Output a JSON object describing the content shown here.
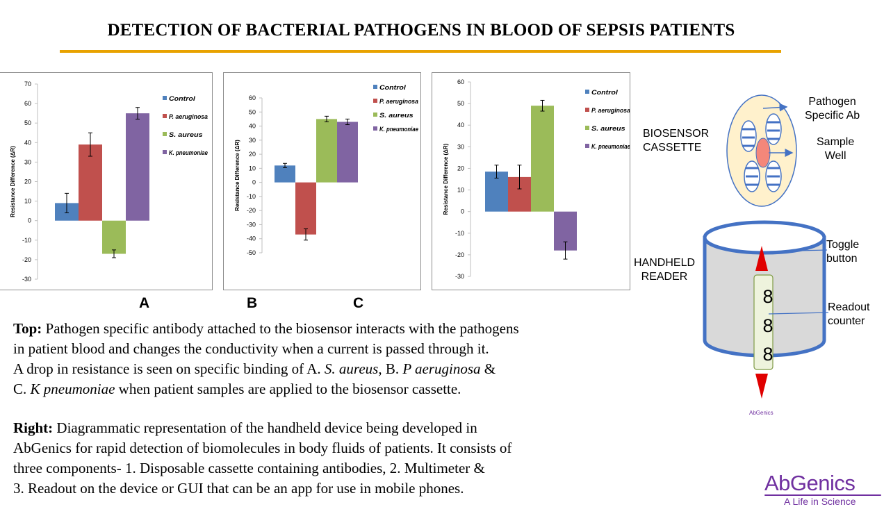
{
  "title": "DETECTION OF BACTERIAL PATHOGENS IN BLOOD OF  SEPSIS PATIENTS",
  "colors": {
    "accent_rule": "#e8a200",
    "brand": "#7030a0",
    "diagram_blue": "#4472c4",
    "arrow_red": "#e00000"
  },
  "panel_labels": {
    "a": "A",
    "b": "B",
    "c": "C"
  },
  "chart_data": [
    {
      "type": "bar",
      "ylabel": "Resistance Difference (ΔR)",
      "ylim": [
        -30,
        70
      ],
      "yticks": [
        "70",
        "60",
        "50",
        "40",
        "30",
        "20",
        "10",
        "0",
        "-10",
        "-20",
        "-30"
      ],
      "categories": [
        "Control",
        "P. aeruginosa",
        "S. aureus",
        "K. pneumoniae"
      ],
      "values": [
        9,
        39,
        -17,
        55
      ],
      "errors": [
        5,
        6,
        2,
        3
      ],
      "colors": [
        "#4f81bd",
        "#c0504d",
        "#9bbb59",
        "#8064a2"
      ]
    },
    {
      "type": "bar",
      "ylabel": "Resistance Difference (ΔR)",
      "ylim": [
        -50,
        60
      ],
      "yticks": [
        "60",
        "50",
        "40",
        "30",
        "20",
        "10",
        "0",
        "-10",
        "-20",
        "-30",
        "-40",
        "-50"
      ],
      "categories": [
        "Control",
        "P. aeruginosa",
        "S. aureus",
        "K. pneumoniae"
      ],
      "values": [
        12,
        -37,
        45,
        43
      ],
      "errors": [
        1.5,
        4,
        2,
        2
      ],
      "colors": [
        "#4f81bd",
        "#c0504d",
        "#9bbb59",
        "#8064a2"
      ]
    },
    {
      "type": "bar",
      "ylabel": "Resistance Difference (ΔR)",
      "ylim": [
        -30,
        60
      ],
      "yticks": [
        "60",
        "50",
        "40",
        "30",
        "20",
        "10",
        "0",
        "-10",
        "-20",
        "-30"
      ],
      "categories": [
        "Control",
        "P. aeruginosa",
        "S. aureus",
        "K. pneumoniae"
      ],
      "values": [
        18.5,
        16,
        49,
        -18
      ],
      "errors": [
        3,
        5.5,
        2.5,
        4
      ],
      "colors": [
        "#4f81bd",
        "#c0504d",
        "#9bbb59",
        "#8064a2"
      ]
    }
  ],
  "captions": {
    "top_bold": "Top:",
    "top_line1": " Pathogen specific antibody attached to the biosensor interacts with the pathogens",
    "top_line2": "in patient blood and changes the conductivity when a current is passed through it.",
    "top_line3a": "A drop in resistance is seen on specific binding of A. ",
    "top_line3b": "S. aureus",
    "top_line3c": ", B. ",
    "top_line3d": "P aeruginosa",
    "top_line3e": " &",
    "top_line4a": "C. ",
    "top_line4b": "K pneumoniae",
    "top_line4c": " when patient samples are applied to the biosensor cassette.",
    "right_bold": "Right:",
    "right_line1": "  Diagrammatic representation of the handheld device being developed in",
    "right_line2": "AbGenics for rapid detection of biomolecules in body fluids of patients. It consists of",
    "right_line3": "three components- 1. Disposable cassette containing antibodies, 2. Multimeter &",
    "right_line4": "3. Readout on the device or GUI that can be an app for use in mobile phones."
  },
  "diagram": {
    "cassette_label_1": "BIOSENSOR",
    "cassette_label_2": "CASSETTE",
    "ab_label_1": "Pathogen",
    "ab_label_2": "Specific Ab",
    "well_label_1": "Sample",
    "well_label_2": "Well",
    "reader_label_1": "HANDHELD",
    "reader_label_2": "READER",
    "toggle_label_1": "Toggle",
    "toggle_label_2": "button",
    "readout_label_1": "Readout",
    "readout_label_2": "counter",
    "digits": [
      "8",
      "8",
      "8"
    ],
    "mini_logo": "AbGenics"
  },
  "brand": {
    "name": "AbGenics",
    "tagline": "A Life in Science"
  }
}
